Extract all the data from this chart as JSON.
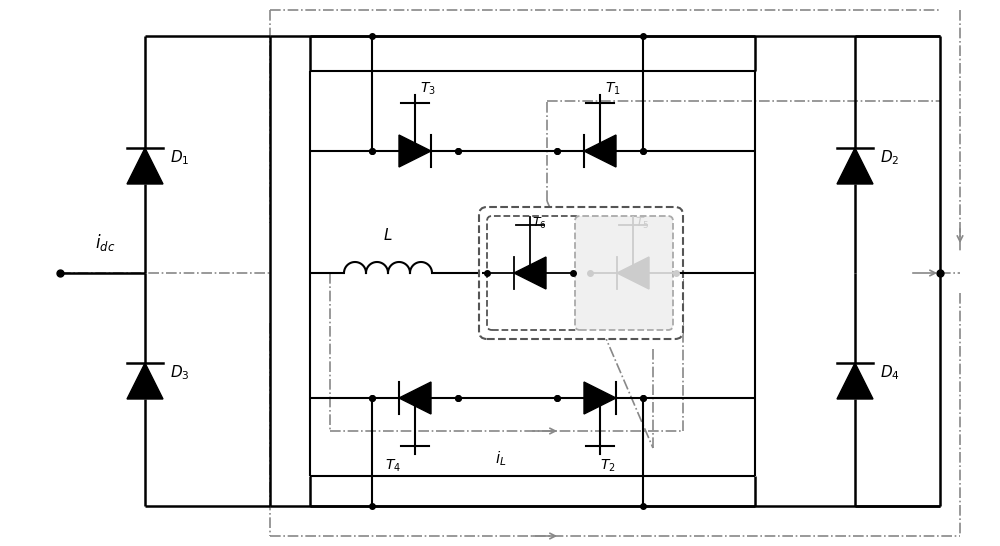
{
  "bg_color": "#ffffff",
  "line_color": "#000000",
  "dash_color": "#888888",
  "faded_color": "#cccccc",
  "lw_main": 1.8,
  "lw_inner": 1.5,
  "lw_dash": 1.2
}
